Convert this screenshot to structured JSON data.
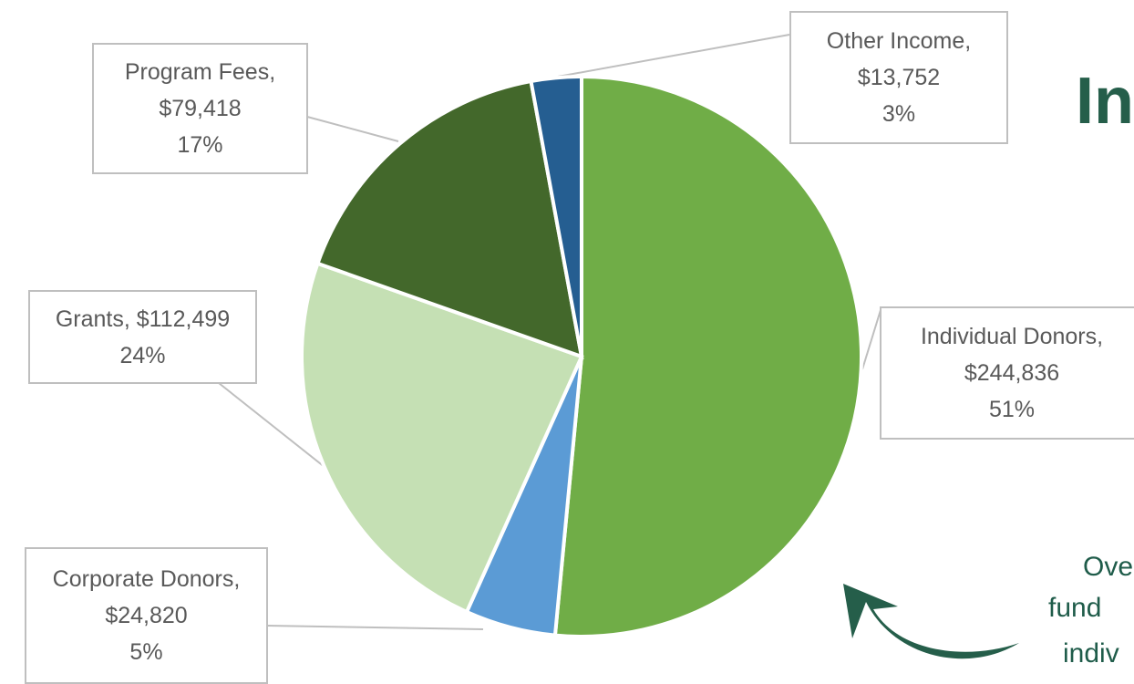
{
  "chart_data": {
    "type": "pie",
    "title": "In",
    "annotation": [
      "Ove",
      "fund",
      "indiv"
    ],
    "categories": [
      "Individual Donors,",
      "Corporate Donors,",
      "Grants,",
      "Program Fees,",
      "Other Income,"
    ],
    "values": [
      244836,
      24820,
      112499,
      79418,
      13752
    ],
    "value_labels": [
      "$244,836",
      "$24,820",
      "$112,499",
      "$79,418",
      "$13,752"
    ],
    "percents": [
      51,
      5,
      24,
      17,
      3
    ],
    "percent_labels": [
      "51%",
      "5%",
      "24%",
      "17%",
      "3%"
    ],
    "colors": [
      "#70ad47",
      "#5b9bd5",
      "#c5e0b4",
      "#43682b",
      "#255e91"
    ]
  }
}
